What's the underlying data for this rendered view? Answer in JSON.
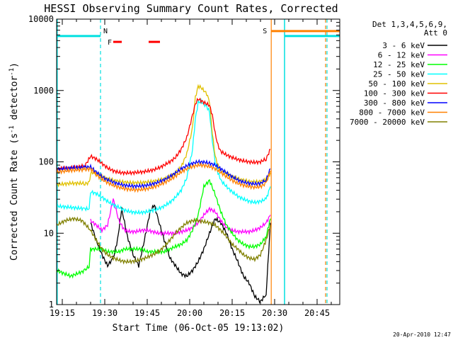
{
  "chart_data": {
    "type": "line",
    "title": "HESSI Observing Summary Count Rates, Corrected",
    "xlabel": "Start Time (06-Oct-05 19:13:02)",
    "ylabel": "Corrected Count Rate (s",
    "ylabel_sup": "-1",
    "ylabel_mid": " detector",
    "ylabel_sup2": "-1",
    "ylabel_end": ")",
    "yscale": "log",
    "ylim": [
      1,
      10000
    ],
    "xlim_minutes": [
      0,
      100
    ],
    "x_tick_labels": [
      "19:15",
      "19:30",
      "19:45",
      "20:00",
      "20:15",
      "20:30",
      "20:45"
    ],
    "x_tick_minutes": [
      2,
      17,
      32,
      47,
      62,
      77,
      92
    ],
    "y_tick_labels": [
      "1",
      "10",
      "100",
      "1000",
      "10000"
    ],
    "y_tick_values": [
      1,
      10,
      100,
      1000,
      10000
    ],
    "legend_header": [
      "Det 1,3,4,5,6,9,",
      "Att 0"
    ],
    "legend_placement": "right",
    "footer_date": "20-Apr-2010 12:47",
    "flags": {
      "N_label": "N",
      "F_label": "F",
      "S_label": "S",
      "N_color": "#00e0e0",
      "F_color": "#ff0000",
      "S_color": "#ff8000",
      "night_y": 5800,
      "night_intervals": [
        [
          0,
          15.5
        ],
        [
          80.5,
          100
        ]
      ],
      "flare_y": 4800,
      "flare_intervals": [
        [
          20,
          23
        ],
        [
          32.5,
          36.5
        ]
      ],
      "saa_y": 6800,
      "saa_intervals": [
        [
          75.8,
          100
        ]
      ],
      "cyan_vlines_solid": [
        0.2,
        80.5
      ],
      "cyan_vlines_dashed": [
        15.5,
        95.5
      ],
      "orange_vlines_solid": [
        75.8
      ],
      "orange_vlines_dashed": [
        95.0
      ]
    },
    "series": [
      {
        "name": "3 - 6 keV",
        "color": "#000000",
        "x": [
          12,
          14,
          16,
          18,
          20,
          21.5,
          23,
          25,
          27,
          29,
          31,
          33,
          34.5,
          36,
          38,
          40,
          42,
          44,
          46,
          48,
          50,
          52,
          54,
          56,
          58,
          60,
          62,
          64,
          66,
          68,
          70,
          72,
          74,
          75.5
        ],
        "y": [
          14,
          8,
          5,
          3.5,
          4.5,
          8,
          22,
          9,
          5,
          3.5,
          8,
          20,
          25,
          15,
          8,
          4.5,
          3.5,
          2.7,
          2.5,
          3,
          4,
          6,
          10,
          16,
          14,
          10,
          6,
          4,
          2.5,
          2,
          1.3,
          1.1,
          1.4,
          14
        ]
      },
      {
        "name": "6 - 12 keV",
        "color": "#ff00ff",
        "x": [
          12,
          14,
          16,
          18,
          20,
          22,
          24,
          26,
          28,
          30,
          32,
          34,
          36,
          38,
          40,
          42,
          44,
          46,
          48,
          50,
          52,
          54,
          56,
          58,
          60,
          62,
          64,
          66,
          68,
          70,
          72,
          74,
          75.5
        ],
        "y": [
          15,
          13,
          11,
          13,
          30,
          15,
          11,
          10.5,
          10.5,
          11,
          11,
          10.5,
          10,
          10,
          10,
          10,
          10.5,
          11,
          12,
          14,
          18,
          22,
          20,
          15,
          12,
          11,
          10.5,
          10.5,
          10.5,
          11,
          12,
          14,
          18
        ]
      },
      {
        "name": "12 - 25 keV",
        "color": "#00ff00",
        "x": [
          0,
          5,
          10,
          11.5,
          12,
          14,
          16,
          18,
          20,
          22,
          24,
          26,
          28,
          30,
          32,
          34,
          36,
          38,
          40,
          42,
          44,
          46,
          48,
          50,
          52,
          54,
          56,
          58,
          60,
          62,
          64,
          66,
          68,
          70,
          72,
          74,
          75.5
        ],
        "y": [
          3,
          2.5,
          3,
          3.5,
          6,
          6,
          6,
          5.5,
          5.5,
          5.5,
          6,
          6,
          6,
          6,
          5.5,
          5.5,
          5.5,
          5.5,
          6,
          6.5,
          7,
          8,
          11,
          18,
          45,
          55,
          35,
          20,
          13,
          10,
          8,
          7,
          6.5,
          6.5,
          7,
          9,
          16
        ]
      },
      {
        "name": "25 - 50 keV",
        "color": "#00ffff",
        "x": [
          0,
          5,
          10,
          11.5,
          12,
          14,
          16,
          18,
          20,
          22,
          24,
          26,
          28,
          30,
          32,
          34,
          36,
          38,
          40,
          42,
          44,
          46,
          48,
          49,
          50,
          51,
          52,
          53,
          54,
          55,
          56,
          57,
          58,
          60,
          62,
          64,
          66,
          68,
          70,
          72,
          74,
          75.5
        ],
        "y": [
          24,
          23,
          22,
          22,
          38,
          36,
          32,
          28,
          25,
          23,
          21,
          20,
          19.5,
          19.5,
          20,
          21,
          22,
          24,
          27,
          32,
          40,
          60,
          150,
          400,
          680,
          700,
          650,
          600,
          500,
          200,
          100,
          70,
          55,
          45,
          38,
          33,
          30,
          28,
          27,
          28,
          30,
          45
        ]
      },
      {
        "name": "50 - 100 keV",
        "color": "#e0c000",
        "x": [
          0,
          5,
          10,
          11.5,
          12,
          14,
          16,
          18,
          20,
          22,
          24,
          26,
          28,
          30,
          32,
          34,
          36,
          38,
          40,
          42,
          44,
          46,
          48,
          49,
          50,
          51,
          52,
          53,
          54,
          55,
          56,
          57,
          58,
          60,
          62,
          64,
          66,
          68,
          70,
          72,
          74,
          75.5
        ],
        "y": [
          48,
          50,
          50,
          50,
          70,
          70,
          62,
          58,
          55,
          53,
          52,
          51,
          51,
          51,
          52,
          53,
          55,
          58,
          62,
          70,
          85,
          130,
          300,
          800,
          1150,
          1100,
          1000,
          900,
          700,
          250,
          120,
          90,
          75,
          68,
          62,
          58,
          55,
          53,
          52,
          53,
          56,
          70
        ]
      },
      {
        "name": "100 - 300 keV",
        "color": "#ff0000",
        "x": [
          0,
          5,
          10,
          12,
          14,
          16,
          18,
          20,
          22,
          24,
          26,
          28,
          30,
          32,
          34,
          36,
          38,
          40,
          42,
          44,
          46,
          48,
          49,
          50,
          51,
          52,
          53,
          54,
          55,
          56,
          57,
          58,
          60,
          62,
          64,
          66,
          68,
          70,
          72,
          74,
          75.5
        ],
        "y": [
          80,
          82,
          88,
          120,
          110,
          95,
          82,
          75,
          71,
          70,
          70,
          71,
          72,
          74,
          77,
          82,
          90,
          100,
          115,
          150,
          220,
          450,
          650,
          760,
          720,
          680,
          650,
          620,
          450,
          250,
          170,
          140,
          125,
          115,
          108,
          103,
          100,
          98,
          100,
          110,
          150
        ]
      },
      {
        "name": "300 - 800 keV",
        "color": "#0000ff",
        "x": [
          0,
          5,
          10,
          12,
          14,
          16,
          18,
          20,
          22,
          24,
          26,
          28,
          30,
          32,
          34,
          36,
          38,
          40,
          42,
          44,
          46,
          48,
          50,
          52,
          54,
          56,
          58,
          60,
          62,
          64,
          66,
          68,
          70,
          72,
          74,
          75.5
        ],
        "y": [
          78,
          82,
          84,
          85,
          72,
          62,
          56,
          52,
          49,
          47,
          46,
          45.5,
          46,
          47,
          49,
          52,
          56,
          62,
          70,
          80,
          88,
          95,
          100,
          99,
          96,
          90,
          80,
          70,
          62,
          56,
          52,
          50,
          49,
          50,
          56,
          80
        ]
      },
      {
        "name": "800 - 7000 keV",
        "color": "#ff8000",
        "x": [
          0,
          5,
          10,
          12,
          14,
          16,
          18,
          20,
          22,
          24,
          26,
          28,
          30,
          32,
          34,
          36,
          38,
          40,
          42,
          44,
          46,
          48,
          50,
          52,
          54,
          56,
          58,
          60,
          62,
          64,
          66,
          68,
          70,
          72,
          74,
          75.5
        ],
        "y": [
          72,
          76,
          78,
          80,
          66,
          57,
          51,
          47,
          44,
          42,
          41,
          40.5,
          41,
          42,
          44,
          47,
          51,
          56,
          63,
          72,
          80,
          86,
          90,
          89,
          86,
          80,
          71,
          62,
          55,
          50,
          47,
          45,
          44,
          45,
          50,
          75
        ]
      },
      {
        "name": "7000 - 20000 keV",
        "color": "#808000",
        "x": [
          0,
          3,
          6,
          9,
          12,
          14,
          16,
          18,
          20,
          22,
          24,
          26,
          28,
          30,
          32,
          34,
          36,
          38,
          40,
          42,
          44,
          46,
          48,
          50,
          52,
          54,
          56,
          58,
          60,
          62,
          64,
          66,
          68,
          70,
          72,
          74,
          75.5
        ],
        "y": [
          13,
          15,
          16,
          15,
          11,
          8,
          6,
          5,
          4.5,
          4.2,
          4,
          4,
          4.1,
          4.3,
          4.6,
          5,
          5.5,
          6.5,
          8,
          10,
          12,
          14,
          15,
          15,
          14.5,
          14,
          13,
          11,
          9,
          7,
          6,
          5,
          4.5,
          4.3,
          5,
          8,
          13
        ]
      }
    ]
  }
}
